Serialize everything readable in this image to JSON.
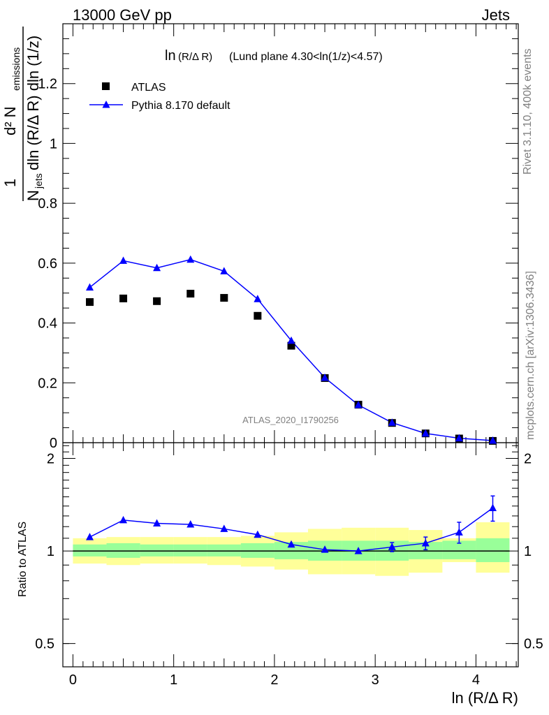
{
  "header": {
    "left": "13000 GeV pp",
    "right": "Jets"
  },
  "plot_title": {
    "main": "ln",
    "sub": "(R/Δ R)",
    "rest": "(Lund plane 4.30<ln(1/z)<4.57)"
  },
  "side_labels": {
    "rivet": "Rivet 3.1.10,  400k events",
    "mcplots": "mcplots.cern.ch [arXiv:1306.3436]"
  },
  "watermark": "ATLAS_2020_I1790256",
  "y_axis_label": {
    "numerator": "1",
    "denominator_prefix": "N",
    "denominator_sub": "jets",
    "denominator_rest": "dln (R/Δ R) dln (1/z)",
    "d2": "d² N",
    "d2_sub": "emissions"
  },
  "ratio_ylabel": "Ratio to ATLAS",
  "x_axis_label": "ln (R/Δ R)",
  "legend": {
    "atlas": "ATLAS",
    "pythia": "Pythia 8.170 default"
  },
  "colors": {
    "data": "#000000",
    "mc": "#0000ff",
    "band_inner": "#99ff99",
    "band_outer": "#ffff99"
  },
  "chart_data": [
    {
      "type": "scatter",
      "panel": "main",
      "xlim": [
        -0.1,
        4.42
      ],
      "ylim": [
        0,
        1.4
      ],
      "x_ticks": [
        "0",
        "1",
        "2",
        "3",
        "4"
      ],
      "y_ticks": [
        "0",
        "0.2",
        "0.4",
        "0.6",
        "0.8",
        "1",
        "1.2"
      ],
      "series": [
        {
          "name": "ATLAS",
          "x": [
            0.167,
            0.5,
            0.833,
            1.167,
            1.5,
            1.833,
            2.167,
            2.5,
            2.833,
            3.167,
            3.5,
            3.833,
            4.167
          ],
          "y": [
            0.47,
            0.482,
            0.473,
            0.498,
            0.484,
            0.424,
            0.324,
            0.216,
            0.127,
            0.066,
            0.031,
            0.014,
            0.006
          ]
        },
        {
          "name": "Pythia 8.170 default",
          "x": [
            0.167,
            0.5,
            0.833,
            1.167,
            1.5,
            1.833,
            2.167,
            2.5,
            2.833,
            3.167,
            3.5,
            3.833,
            4.167
          ],
          "y": [
            0.519,
            0.608,
            0.584,
            0.612,
            0.573,
            0.48,
            0.341,
            0.217,
            0.126,
            0.067,
            0.031,
            0.015,
            0.007
          ],
          "err": [
            0.006,
            0.01,
            0.006,
            0.009,
            0.006,
            0.005,
            0.004,
            0.003,
            0.002,
            0.0015,
            0.001,
            0.0008,
            0.0005
          ]
        }
      ]
    },
    {
      "type": "scatter",
      "panel": "ratio",
      "ylabel": "Ratio to ATLAS",
      "ylim": [
        0.42,
        2.25
      ],
      "log_y": true,
      "y_ticks": [
        "0.5",
        "1",
        "2"
      ],
      "x_edges": [
        0,
        0.333,
        0.667,
        1.0,
        1.333,
        1.667,
        2.0,
        2.333,
        2.667,
        3.0,
        3.333,
        3.667,
        4.0,
        4.333
      ],
      "band_inner": [
        [
          0.96,
          1.05
        ],
        [
          0.95,
          1.06
        ],
        [
          0.96,
          1.05
        ],
        [
          0.96,
          1.05
        ],
        [
          0.96,
          1.05
        ],
        [
          0.95,
          1.06
        ],
        [
          0.94,
          1.07
        ],
        [
          0.93,
          1.08
        ],
        [
          0.93,
          1.08
        ],
        [
          0.93,
          1.08
        ],
        [
          0.94,
          1.07
        ],
        [
          0.94,
          1.08
        ],
        [
          0.92,
          1.1
        ]
      ],
      "band_outer": [
        [
          0.91,
          1.1
        ],
        [
          0.9,
          1.11
        ],
        [
          0.91,
          1.11
        ],
        [
          0.91,
          1.11
        ],
        [
          0.9,
          1.11
        ],
        [
          0.89,
          1.12
        ],
        [
          0.87,
          1.15
        ],
        [
          0.84,
          1.18
        ],
        [
          0.84,
          1.19
        ],
        [
          0.83,
          1.19
        ],
        [
          0.85,
          1.17
        ],
        [
          0.92,
          1.1
        ],
        [
          0.85,
          1.24
        ]
      ],
      "series": [
        {
          "name": "Pythia 8.170 default",
          "x": [
            0.167,
            0.5,
            0.833,
            1.167,
            1.5,
            1.833,
            2.167,
            2.5,
            2.833,
            3.167,
            3.5,
            3.833,
            4.167
          ],
          "y": [
            1.11,
            1.26,
            1.23,
            1.22,
            1.18,
            1.13,
            1.05,
            1.01,
            1.0,
            1.03,
            1.06,
            1.15,
            1.38
          ],
          "err": [
            0.012,
            0.02,
            0.015,
            0.02,
            0.015,
            0.012,
            0.012,
            0.014,
            0.02,
            0.035,
            0.05,
            0.09,
            0.13
          ]
        }
      ]
    }
  ]
}
